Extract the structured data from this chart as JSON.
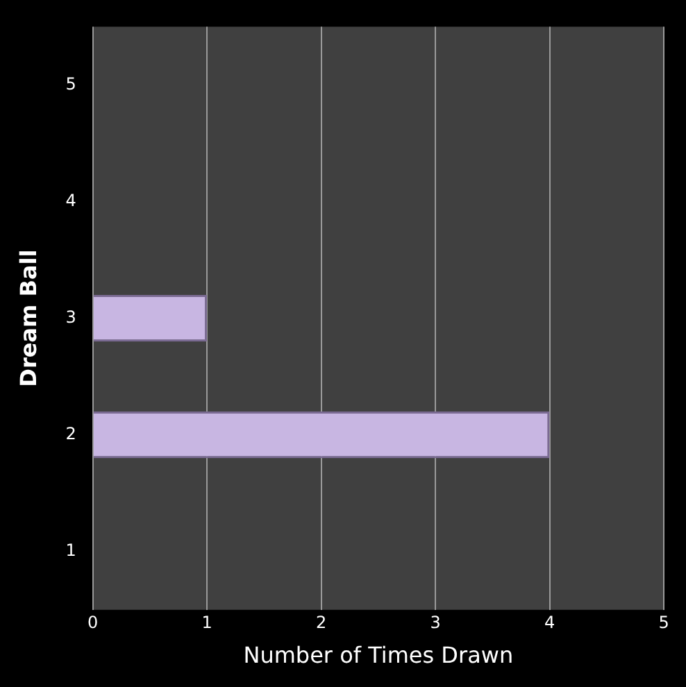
{
  "chart_data": {
    "type": "bar",
    "orientation": "horizontal",
    "xlabel": "Number of Times Drawn",
    "ylabel": "Dream Ball",
    "categories": [
      "5",
      "4",
      "3",
      "2",
      "1"
    ],
    "values": [
      0,
      0,
      1,
      4,
      0
    ],
    "color": "#c8b6e2",
    "xlim": [
      0,
      5
    ],
    "xticks": [
      0,
      1,
      2,
      3,
      4,
      5
    ],
    "grid": "x",
    "legend": false
  }
}
